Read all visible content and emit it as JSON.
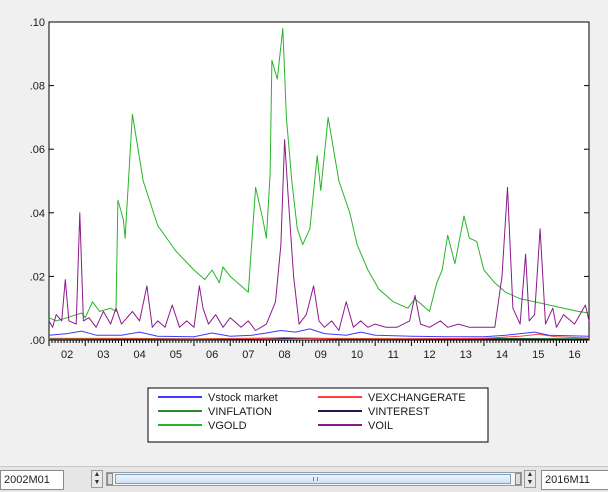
{
  "chart_data": {
    "type": "line",
    "title": "",
    "xlabel": "",
    "ylabel": "",
    "ylim": [
      0,
      0.1
    ],
    "xlim": [
      2002.0,
      2016.9
    ],
    "y_ticks": [
      0.0,
      0.02,
      0.04,
      0.06,
      0.08,
      0.1
    ],
    "y_tick_labels": [
      ".00",
      ".02",
      ".04",
      ".06",
      ".08",
      ".10"
    ],
    "x_ticks": [
      2002,
      2003,
      2004,
      2005,
      2006,
      2007,
      2008,
      2009,
      2010,
      2011,
      2012,
      2013,
      2014,
      2015,
      2016
    ],
    "x_tick_labels": [
      "02",
      "03",
      "04",
      "05",
      "06",
      "07",
      "08",
      "09",
      "10",
      "11",
      "12",
      "13",
      "14",
      "15",
      "16"
    ],
    "grid": false,
    "legend_position": "bottom",
    "series": [
      {
        "name": "Vstock market",
        "color": "#3c3cff",
        "points": [
          [
            2002.0,
            0.0015
          ],
          [
            2002.5,
            0.002
          ],
          [
            2002.9,
            0.0028
          ],
          [
            2003.3,
            0.0015
          ],
          [
            2004.0,
            0.0015
          ],
          [
            2004.5,
            0.0025
          ],
          [
            2005.0,
            0.0012
          ],
          [
            2006.0,
            0.001
          ],
          [
            2006.5,
            0.0022
          ],
          [
            2007.0,
            0.0012
          ],
          [
            2007.6,
            0.0015
          ],
          [
            2008.0,
            0.0022
          ],
          [
            2008.4,
            0.003
          ],
          [
            2008.8,
            0.0025
          ],
          [
            2009.2,
            0.0035
          ],
          [
            2009.6,
            0.002
          ],
          [
            2010.2,
            0.0015
          ],
          [
            2010.6,
            0.0025
          ],
          [
            2011.0,
            0.0015
          ],
          [
            2012.0,
            0.0012
          ],
          [
            2013.0,
            0.001
          ],
          [
            2014.0,
            0.001
          ],
          [
            2014.6,
            0.0015
          ],
          [
            2015.4,
            0.0025
          ],
          [
            2015.8,
            0.0015
          ],
          [
            2016.9,
            0.0012
          ]
        ]
      },
      {
        "name": "VEXCHANGERATE",
        "color": "#ff4040",
        "points": [
          [
            2002.0,
            0.0003
          ],
          [
            2004.0,
            0.0004
          ],
          [
            2006.0,
            0.0003
          ],
          [
            2008.0,
            0.0005
          ],
          [
            2008.5,
            0.0008
          ],
          [
            2009.0,
            0.0006
          ],
          [
            2010.0,
            0.0004
          ],
          [
            2012.0,
            0.0004
          ],
          [
            2014.0,
            0.0005
          ],
          [
            2015.0,
            0.0012
          ],
          [
            2015.5,
            0.0018
          ],
          [
            2016.0,
            0.001
          ],
          [
            2016.9,
            0.0006
          ]
        ]
      },
      {
        "name": "VINFLATION",
        "color": "#2a8a2a",
        "points": [
          [
            2002.0,
            0.0005
          ],
          [
            2004.0,
            0.0005
          ],
          [
            2006.0,
            0.0004
          ],
          [
            2008.0,
            0.0006
          ],
          [
            2010.0,
            0.0005
          ],
          [
            2012.0,
            0.0004
          ],
          [
            2014.0,
            0.0005
          ],
          [
            2016.9,
            0.0004
          ]
        ]
      },
      {
        "name": "VINTEREST",
        "color": "#1a1a50",
        "points": [
          [
            2002.0,
            0.0002
          ],
          [
            2004.0,
            0.0003
          ],
          [
            2006.0,
            0.0002
          ],
          [
            2007.5,
            0.0003
          ],
          [
            2008.0,
            0.0004
          ],
          [
            2009.0,
            0.0005
          ],
          [
            2010.0,
            0.0003
          ],
          [
            2011.0,
            0.0002
          ],
          [
            2012.0,
            0.0002
          ],
          [
            2014.0,
            0.0003
          ],
          [
            2016.9,
            0.0002
          ]
        ]
      },
      {
        "name": "VGOLD",
        "color": "#28b428",
        "points": [
          [
            2002.0,
            0.007
          ],
          [
            2002.2,
            0.006
          ],
          [
            2002.5,
            0.007
          ],
          [
            2002.9,
            0.0085
          ],
          [
            2003.0,
            0.007
          ],
          [
            2003.2,
            0.012
          ],
          [
            2003.4,
            0.009
          ],
          [
            2003.7,
            0.01
          ],
          [
            2003.85,
            0.009
          ],
          [
            2003.9,
            0.044
          ],
          [
            2004.05,
            0.038
          ],
          [
            2004.1,
            0.032
          ],
          [
            2004.3,
            0.071
          ],
          [
            2004.6,
            0.05
          ],
          [
            2005.0,
            0.036
          ],
          [
            2005.5,
            0.028
          ],
          [
            2006.0,
            0.022
          ],
          [
            2006.3,
            0.019
          ],
          [
            2006.5,
            0.022
          ],
          [
            2006.7,
            0.018
          ],
          [
            2006.8,
            0.023
          ],
          [
            2007.0,
            0.02
          ],
          [
            2007.3,
            0.017
          ],
          [
            2007.5,
            0.015
          ],
          [
            2007.7,
            0.048
          ],
          [
            2007.9,
            0.038
          ],
          [
            2008.0,
            0.032
          ],
          [
            2008.1,
            0.052
          ],
          [
            2008.15,
            0.088
          ],
          [
            2008.3,
            0.082
          ],
          [
            2008.45,
            0.098
          ],
          [
            2008.55,
            0.07
          ],
          [
            2008.7,
            0.05
          ],
          [
            2008.85,
            0.035
          ],
          [
            2009.0,
            0.03
          ],
          [
            2009.2,
            0.035
          ],
          [
            2009.4,
            0.058
          ],
          [
            2009.5,
            0.047
          ],
          [
            2009.7,
            0.07
          ],
          [
            2010.0,
            0.05
          ],
          [
            2010.3,
            0.04
          ],
          [
            2010.5,
            0.03
          ],
          [
            2010.8,
            0.022
          ],
          [
            2011.1,
            0.016
          ],
          [
            2011.5,
            0.012
          ],
          [
            2011.9,
            0.01
          ],
          [
            2012.1,
            0.013
          ],
          [
            2012.5,
            0.009
          ],
          [
            2012.7,
            0.018
          ],
          [
            2012.85,
            0.022
          ],
          [
            2013.0,
            0.033
          ],
          [
            2013.2,
            0.024
          ],
          [
            2013.45,
            0.039
          ],
          [
            2013.6,
            0.032
          ],
          [
            2013.8,
            0.031
          ],
          [
            2014.0,
            0.022
          ],
          [
            2014.3,
            0.018
          ],
          [
            2014.6,
            0.015
          ],
          [
            2015.0,
            0.013
          ],
          [
            2015.4,
            0.012
          ],
          [
            2015.8,
            0.011
          ],
          [
            2016.2,
            0.01
          ],
          [
            2016.6,
            0.009
          ],
          [
            2016.9,
            0.0085
          ]
        ]
      },
      {
        "name": "VOIL",
        "color": "#8c1a8c",
        "points": [
          [
            2002.0,
            0.006
          ],
          [
            2002.1,
            0.004
          ],
          [
            2002.2,
            0.008
          ],
          [
            2002.35,
            0.006
          ],
          [
            2002.45,
            0.019
          ],
          [
            2002.55,
            0.006
          ],
          [
            2002.75,
            0.005
          ],
          [
            2002.85,
            0.04
          ],
          [
            2002.95,
            0.006
          ],
          [
            2003.1,
            0.007
          ],
          [
            2003.3,
            0.004
          ],
          [
            2003.5,
            0.009
          ],
          [
            2003.7,
            0.005
          ],
          [
            2003.85,
            0.01
          ],
          [
            2004.0,
            0.005
          ],
          [
            2004.3,
            0.009
          ],
          [
            2004.5,
            0.006
          ],
          [
            2004.7,
            0.017
          ],
          [
            2004.85,
            0.004
          ],
          [
            2005.0,
            0.006
          ],
          [
            2005.2,
            0.004
          ],
          [
            2005.4,
            0.011
          ],
          [
            2005.6,
            0.004
          ],
          [
            2005.8,
            0.006
          ],
          [
            2006.0,
            0.004
          ],
          [
            2006.15,
            0.017
          ],
          [
            2006.25,
            0.01
          ],
          [
            2006.4,
            0.005
          ],
          [
            2006.6,
            0.008
          ],
          [
            2006.8,
            0.004
          ],
          [
            2007.0,
            0.007
          ],
          [
            2007.3,
            0.004
          ],
          [
            2007.5,
            0.006
          ],
          [
            2007.7,
            0.003
          ],
          [
            2008.0,
            0.005
          ],
          [
            2008.25,
            0.012
          ],
          [
            2008.4,
            0.03
          ],
          [
            2008.5,
            0.063
          ],
          [
            2008.6,
            0.045
          ],
          [
            2008.75,
            0.02
          ],
          [
            2008.9,
            0.005
          ],
          [
            2009.1,
            0.008
          ],
          [
            2009.3,
            0.017
          ],
          [
            2009.45,
            0.006
          ],
          [
            2009.6,
            0.004
          ],
          [
            2009.8,
            0.006
          ],
          [
            2010.0,
            0.003
          ],
          [
            2010.2,
            0.012
          ],
          [
            2010.4,
            0.004
          ],
          [
            2010.6,
            0.006
          ],
          [
            2010.8,
            0.004
          ],
          [
            2011.0,
            0.005
          ],
          [
            2011.3,
            0.004
          ],
          [
            2011.6,
            0.004
          ],
          [
            2011.95,
            0.006
          ],
          [
            2012.1,
            0.014
          ],
          [
            2012.25,
            0.005
          ],
          [
            2012.5,
            0.004
          ],
          [
            2012.8,
            0.006
          ],
          [
            2013.0,
            0.004
          ],
          [
            2013.3,
            0.005
          ],
          [
            2013.6,
            0.004
          ],
          [
            2014.0,
            0.004
          ],
          [
            2014.3,
            0.004
          ],
          [
            2014.5,
            0.02
          ],
          [
            2014.65,
            0.048
          ],
          [
            2014.8,
            0.01
          ],
          [
            2015.0,
            0.005
          ],
          [
            2015.15,
            0.027
          ],
          [
            2015.25,
            0.006
          ],
          [
            2015.4,
            0.008
          ],
          [
            2015.55,
            0.035
          ],
          [
            2015.7,
            0.005
          ],
          [
            2015.9,
            0.01
          ],
          [
            2016.0,
            0.004
          ],
          [
            2016.2,
            0.008
          ],
          [
            2016.5,
            0.005
          ],
          [
            2016.8,
            0.011
          ],
          [
            2016.9,
            0.006
          ]
        ]
      }
    ]
  },
  "scrollbar": {
    "start_label": "2002M01",
    "end_label": "2016M11"
  }
}
